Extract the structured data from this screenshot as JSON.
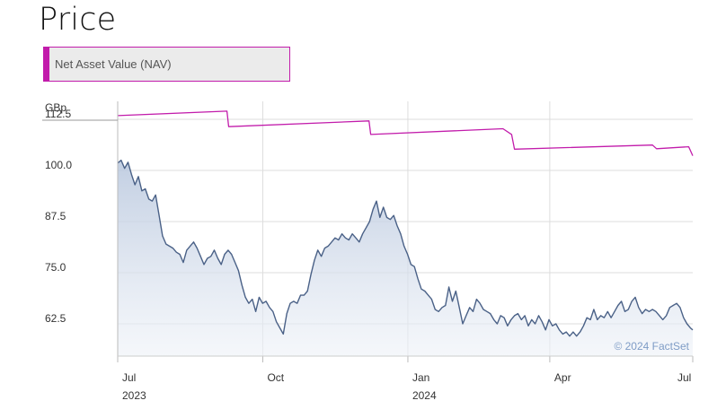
{
  "page": {
    "title": "Price"
  },
  "toggle": {
    "label": "Net Asset Value (NAV)",
    "color": "#c21cab"
  },
  "chart_data": {
    "type": "line",
    "unit_label": "GBp",
    "y_ticks": [
      "112.5",
      "100.0",
      "87.5",
      "75.0",
      "62.5"
    ],
    "ylim": [
      57.5,
      115
    ],
    "x_ticks": [
      {
        "label": "Jul",
        "year": "2023",
        "t": 0
      },
      {
        "label": "Oct",
        "year": "",
        "t": 0.2523
      },
      {
        "label": "Jan",
        "year": "2024",
        "t": 0.5046
      },
      {
        "label": "Apr",
        "year": "",
        "t": 0.7514
      },
      {
        "label": "Jul",
        "year": "",
        "t": 1.0
      }
    ],
    "grid": true,
    "credit": "© 2024 FactSet",
    "series": [
      {
        "color": "#c21cab",
        "points": [
          [
            0.0,
            113.4
          ],
          [
            0.19,
            114.5
          ],
          [
            0.193,
            110.7
          ],
          [
            0.437,
            112.1
          ],
          [
            0.44,
            108.8
          ],
          [
            0.67,
            110.2
          ],
          [
            0.685,
            108.8
          ],
          [
            0.69,
            105.2
          ],
          [
            0.93,
            106.2
          ],
          [
            0.937,
            105.3
          ],
          [
            0.993,
            105.8
          ],
          [
            1.0,
            103.6
          ]
        ]
      },
      {
        "color": "#4a6187",
        "area": true,
        "points": [
          [
            0.0,
            101.8
          ],
          [
            0.006,
            102.5
          ],
          [
            0.012,
            100.5
          ],
          [
            0.018,
            102.0
          ],
          [
            0.024,
            99.0
          ],
          [
            0.03,
            96.5
          ],
          [
            0.036,
            98.5
          ],
          [
            0.042,
            95.0
          ],
          [
            0.048,
            95.5
          ],
          [
            0.054,
            93.0
          ],
          [
            0.06,
            92.5
          ],
          [
            0.066,
            94.0
          ],
          [
            0.072,
            89.0
          ],
          [
            0.078,
            84.0
          ],
          [
            0.084,
            82.0
          ],
          [
            0.09,
            81.5
          ],
          [
            0.096,
            81.0
          ],
          [
            0.102,
            80.0
          ],
          [
            0.108,
            79.5
          ],
          [
            0.114,
            77.5
          ],
          [
            0.12,
            80.5
          ],
          [
            0.126,
            81.5
          ],
          [
            0.132,
            82.5
          ],
          [
            0.138,
            81.0
          ],
          [
            0.144,
            79.0
          ],
          [
            0.15,
            77.0
          ],
          [
            0.156,
            78.5
          ],
          [
            0.162,
            79.0
          ],
          [
            0.168,
            80.5
          ],
          [
            0.174,
            78.5
          ],
          [
            0.18,
            77.0
          ],
          [
            0.186,
            79.5
          ],
          [
            0.192,
            80.5
          ],
          [
            0.198,
            79.5
          ],
          [
            0.204,
            77.5
          ],
          [
            0.21,
            75.5
          ],
          [
            0.216,
            72.0
          ],
          [
            0.222,
            69.0
          ],
          [
            0.228,
            67.5
          ],
          [
            0.234,
            68.5
          ],
          [
            0.24,
            65.5
          ],
          [
            0.246,
            69.0
          ],
          [
            0.252,
            67.5
          ],
          [
            0.258,
            68.0
          ],
          [
            0.264,
            66.5
          ],
          [
            0.27,
            65.5
          ],
          [
            0.276,
            63.0
          ],
          [
            0.282,
            61.5
          ],
          [
            0.288,
            60.0
          ],
          [
            0.294,
            65.0
          ],
          [
            0.3,
            67.5
          ],
          [
            0.306,
            68.0
          ],
          [
            0.312,
            67.5
          ],
          [
            0.318,
            69.5
          ],
          [
            0.324,
            69.5
          ],
          [
            0.33,
            70.5
          ],
          [
            0.336,
            74.5
          ],
          [
            0.342,
            78.0
          ],
          [
            0.348,
            80.5
          ],
          [
            0.354,
            79.0
          ],
          [
            0.36,
            81.0
          ],
          [
            0.366,
            81.5
          ],
          [
            0.372,
            82.5
          ],
          [
            0.378,
            83.5
          ],
          [
            0.384,
            83.0
          ],
          [
            0.39,
            84.5
          ],
          [
            0.396,
            83.5
          ],
          [
            0.402,
            83.0
          ],
          [
            0.408,
            84.5
          ],
          [
            0.414,
            83.5
          ],
          [
            0.42,
            82.5
          ],
          [
            0.426,
            84.5
          ],
          [
            0.432,
            86.0
          ],
          [
            0.438,
            87.5
          ],
          [
            0.444,
            90.5
          ],
          [
            0.45,
            92.5
          ],
          [
            0.456,
            88.5
          ],
          [
            0.462,
            91.0
          ],
          [
            0.468,
            88.5
          ],
          [
            0.474,
            88.0
          ],
          [
            0.48,
            89.0
          ],
          [
            0.486,
            86.5
          ],
          [
            0.492,
            84.5
          ],
          [
            0.498,
            81.5
          ],
          [
            0.504,
            79.5
          ],
          [
            0.51,
            77.0
          ],
          [
            0.516,
            76.5
          ],
          [
            0.522,
            73.5
          ],
          [
            0.528,
            71.0
          ],
          [
            0.534,
            70.5
          ],
          [
            0.54,
            69.5
          ],
          [
            0.546,
            68.5
          ],
          [
            0.552,
            66.0
          ],
          [
            0.558,
            65.5
          ],
          [
            0.564,
            66.5
          ],
          [
            0.57,
            67.0
          ],
          [
            0.576,
            71.5
          ],
          [
            0.582,
            68.0
          ],
          [
            0.588,
            70.5
          ],
          [
            0.594,
            66.5
          ],
          [
            0.6,
            62.5
          ],
          [
            0.606,
            64.5
          ],
          [
            0.612,
            66.5
          ],
          [
            0.618,
            65.5
          ],
          [
            0.624,
            68.5
          ],
          [
            0.63,
            67.5
          ],
          [
            0.636,
            66.0
          ],
          [
            0.642,
            65.5
          ],
          [
            0.648,
            65.0
          ],
          [
            0.654,
            63.5
          ],
          [
            0.66,
            62.5
          ],
          [
            0.666,
            64.5
          ],
          [
            0.672,
            64.0
          ],
          [
            0.678,
            62.0
          ],
          [
            0.684,
            63.5
          ],
          [
            0.69,
            64.5
          ],
          [
            0.696,
            65.0
          ],
          [
            0.702,
            63.5
          ],
          [
            0.708,
            64.5
          ],
          [
            0.714,
            62.0
          ],
          [
            0.72,
            63.5
          ],
          [
            0.726,
            62.5
          ],
          [
            0.732,
            64.5
          ],
          [
            0.738,
            63.0
          ],
          [
            0.744,
            61.0
          ],
          [
            0.75,
            63.5
          ],
          [
            0.756,
            62.0
          ],
          [
            0.762,
            62.5
          ],
          [
            0.768,
            61.0
          ],
          [
            0.774,
            60.0
          ],
          [
            0.78,
            60.5
          ],
          [
            0.786,
            59.5
          ],
          [
            0.792,
            60.5
          ],
          [
            0.798,
            59.5
          ],
          [
            0.804,
            60.5
          ],
          [
            0.81,
            62.0
          ],
          [
            0.816,
            64.0
          ],
          [
            0.822,
            63.5
          ],
          [
            0.828,
            66.0
          ],
          [
            0.834,
            63.5
          ],
          [
            0.84,
            64.5
          ],
          [
            0.846,
            64.0
          ],
          [
            0.852,
            65.5
          ],
          [
            0.858,
            64.0
          ],
          [
            0.864,
            65.5
          ],
          [
            0.87,
            67.0
          ],
          [
            0.876,
            68.0
          ],
          [
            0.882,
            65.5
          ],
          [
            0.888,
            66.0
          ],
          [
            0.894,
            68.0
          ],
          [
            0.9,
            69.0
          ],
          [
            0.906,
            66.5
          ],
          [
            0.912,
            65.0
          ],
          [
            0.918,
            66.0
          ],
          [
            0.924,
            65.5
          ],
          [
            0.93,
            66.0
          ],
          [
            0.936,
            65.5
          ],
          [
            0.942,
            64.5
          ],
          [
            0.948,
            63.5
          ],
          [
            0.954,
            64.5
          ],
          [
            0.96,
            66.5
          ],
          [
            0.966,
            67.0
          ],
          [
            0.972,
            67.5
          ],
          [
            0.978,
            66.5
          ],
          [
            0.984,
            64.0
          ],
          [
            0.99,
            62.5
          ],
          [
            0.996,
            61.5
          ],
          [
            1.0,
            61.0
          ]
        ]
      }
    ]
  }
}
